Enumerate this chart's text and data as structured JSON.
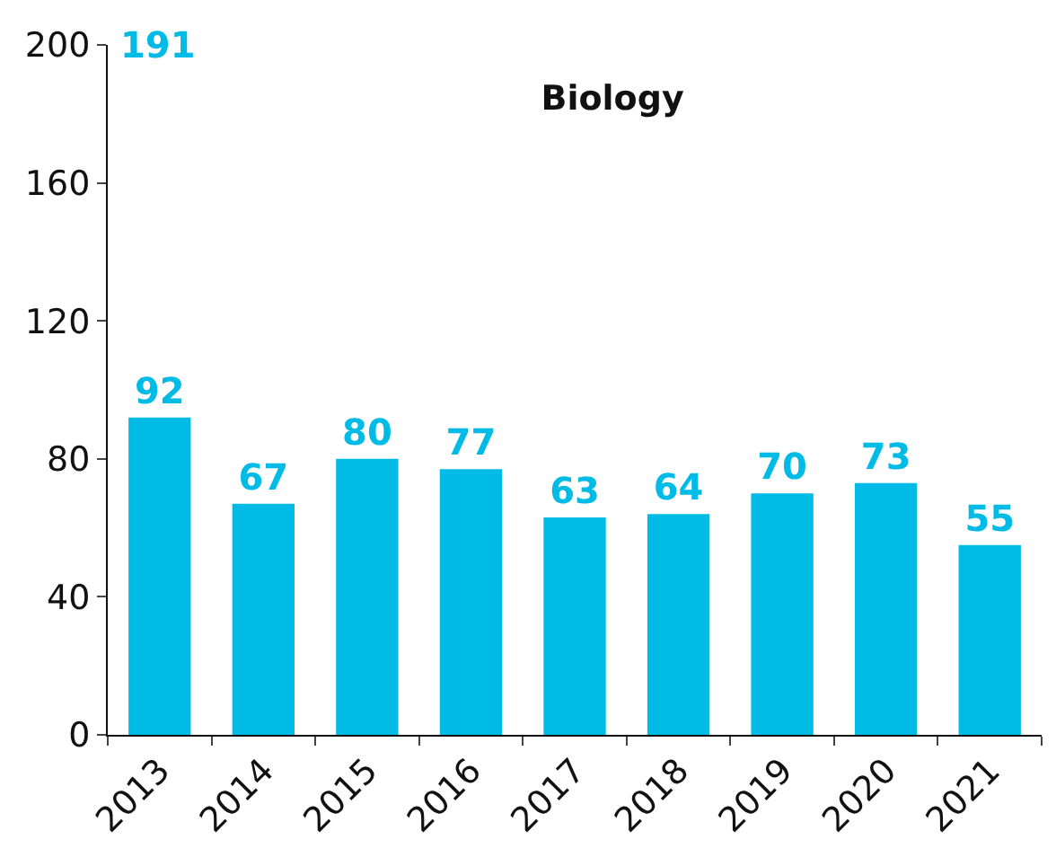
{
  "chart_data": {
    "type": "bar",
    "title": "Biology",
    "categories": [
      "2013",
      "2014",
      "2015",
      "2016",
      "2017",
      "2018",
      "2019",
      "2020",
      "2021"
    ],
    "values": [
      92,
      67,
      80,
      77,
      63,
      64,
      70,
      73,
      55
    ],
    "color": "#00bbe6",
    "ylim": [
      0,
      200
    ],
    "yticks": [
      0,
      40,
      80,
      120,
      160,
      200
    ],
    "data_labels": true,
    "annotations": [
      "191"
    ]
  }
}
